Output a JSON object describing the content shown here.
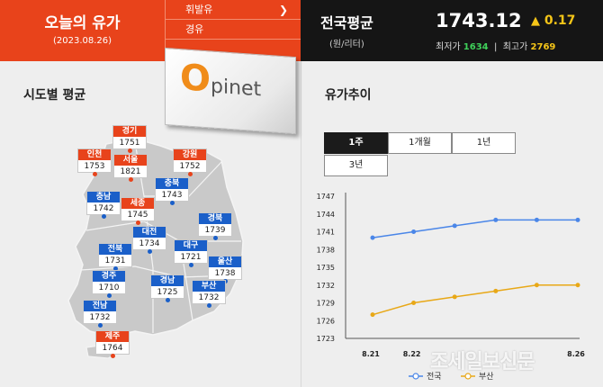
{
  "today": {
    "title": "오늘의 유가",
    "date": "(2023.08.26)"
  },
  "fuel_menu": [
    {
      "label": "휘발유",
      "selected": true
    },
    {
      "label": "경유",
      "selected": false
    }
  ],
  "national": {
    "title": "전국평균",
    "unit": "(원/리터)",
    "price": "1743.12",
    "change": "0.17",
    "low_label": "최저가",
    "low": "1634",
    "high_label": "최고가",
    "high": "2769"
  },
  "logo": {
    "o": "O",
    "rest": "pinet"
  },
  "regional": {
    "title": "시도별 평균",
    "regions": [
      {
        "name": "경기",
        "price": "1751",
        "color": "red"
      },
      {
        "name": "인천",
        "price": "1753",
        "color": "red"
      },
      {
        "name": "서울",
        "price": "1821",
        "color": "red"
      },
      {
        "name": "강원",
        "price": "1752",
        "color": "red"
      },
      {
        "name": "충북",
        "price": "1743",
        "color": "blue"
      },
      {
        "name": "충남",
        "price": "1742",
        "color": "blue"
      },
      {
        "name": "세종",
        "price": "1745",
        "color": "red"
      },
      {
        "name": "경북",
        "price": "1739",
        "color": "blue"
      },
      {
        "name": "대전",
        "price": "1734",
        "color": "blue"
      },
      {
        "name": "대구",
        "price": "1721",
        "color": "blue"
      },
      {
        "name": "전북",
        "price": "1731",
        "color": "blue"
      },
      {
        "name": "울산",
        "price": "1738",
        "color": "blue"
      },
      {
        "name": "경주",
        "price": "1710",
        "color": "blue"
      },
      {
        "name": "경남",
        "price": "1725",
        "color": "blue"
      },
      {
        "name": "부산",
        "price": "1732",
        "color": "blue"
      },
      {
        "name": "전남",
        "price": "1732",
        "color": "blue"
      },
      {
        "name": "제주",
        "price": "1764",
        "color": "red"
      }
    ]
  },
  "trend": {
    "title": "유가추이",
    "tabs": [
      "1주",
      "1개월",
      "1년",
      "3년"
    ],
    "active_tab": "1주"
  },
  "colors": {
    "accent": "#e8431b",
    "blue": "#1a5fc9",
    "gold": "#e8a817",
    "line_blue": "#4a86e8"
  },
  "chart_data": {
    "type": "line",
    "x": [
      "8.21",
      "8.22",
      "8.23",
      "8.24",
      "8.25",
      "8.26"
    ],
    "x_visible_labels": [
      "8.21",
      "8.22",
      "",
      "",
      "",
      "8.26"
    ],
    "ylim": [
      1723,
      1747
    ],
    "yticks": [
      1723,
      1726,
      1729,
      1732,
      1735,
      1738,
      1741,
      1744,
      1747
    ],
    "series": [
      {
        "name": "전국",
        "color": "#4a86e8",
        "values": [
          1740,
          1741,
          1742,
          1743,
          1743,
          1743
        ]
      },
      {
        "name": "부산",
        "color": "#e8a817",
        "values": [
          1727,
          1729,
          1730,
          1731,
          1732,
          1732
        ]
      }
    ],
    "legend_position": "bottom",
    "grid": false
  },
  "watermark": "조세일보신문"
}
